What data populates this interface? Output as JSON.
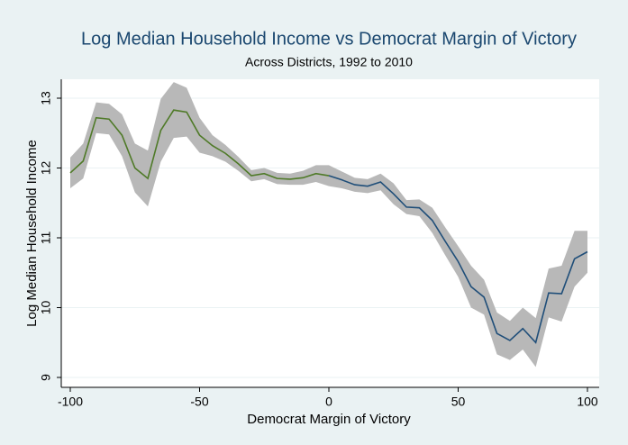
{
  "chart_data": {
    "type": "line",
    "title": "Log Median Household Income vs Democrat Margin of Victory",
    "subtitle": "Across Districts, 1992 to 2010",
    "x_label": "Democrat Margin of Victory",
    "y_label": "Log Median Household Income",
    "x": [
      -100,
      -95,
      -90,
      -85,
      -80,
      -75,
      -70,
      -65,
      -60,
      -55,
      -50,
      -45,
      -40,
      -35,
      -30,
      -25,
      -20,
      -15,
      -10,
      -5,
      0,
      5,
      10,
      15,
      20,
      25,
      30,
      35,
      40,
      45,
      50,
      55,
      60,
      65,
      70,
      75,
      80,
      85,
      90,
      95,
      100
    ],
    "series": [
      {
        "color": "#4f7a28",
        "values": [
          11.93,
          12.1,
          12.72,
          12.7,
          12.47,
          12.0,
          11.85,
          12.54,
          12.83,
          12.8,
          12.47,
          12.32,
          12.21,
          12.06,
          11.89,
          11.92,
          11.85,
          11.84,
          11.86,
          11.92,
          11.89,
          null,
          null,
          null,
          null,
          null,
          null,
          null,
          null,
          null,
          null,
          null,
          null,
          null,
          null,
          null,
          null,
          null,
          null,
          null,
          null
        ]
      },
      {
        "color": "#1f4e79",
        "values": [
          null,
          null,
          null,
          null,
          null,
          null,
          null,
          null,
          null,
          null,
          null,
          null,
          null,
          null,
          null,
          null,
          null,
          null,
          null,
          null,
          11.89,
          11.83,
          11.76,
          11.74,
          11.8,
          11.63,
          11.44,
          11.43,
          11.25,
          10.95,
          10.66,
          10.3,
          10.15,
          9.63,
          9.53,
          9.7,
          9.5,
          10.21,
          10.2,
          10.7,
          10.8
        ]
      }
    ],
    "band": {
      "color": "#b8b8b8",
      "lower": [
        11.71,
        11.85,
        12.5,
        12.48,
        12.17,
        11.65,
        11.45,
        12.09,
        12.43,
        12.45,
        12.22,
        12.17,
        12.09,
        11.96,
        11.81,
        11.84,
        11.77,
        11.76,
        11.76,
        11.8,
        11.74,
        11.71,
        11.66,
        11.64,
        11.68,
        11.48,
        11.34,
        11.31,
        11.07,
        10.75,
        10.44,
        10.0,
        9.9,
        9.33,
        9.25,
        9.4,
        9.15,
        9.86,
        9.8,
        10.3,
        10.5
      ],
      "upper": [
        12.15,
        12.35,
        12.94,
        12.92,
        12.77,
        12.35,
        12.25,
        12.99,
        13.23,
        13.15,
        12.72,
        12.47,
        12.33,
        12.16,
        11.97,
        12.0,
        11.93,
        11.92,
        11.96,
        12.04,
        12.04,
        11.95,
        11.86,
        11.84,
        11.92,
        11.78,
        11.54,
        11.55,
        11.43,
        11.15,
        10.88,
        10.6,
        10.4,
        9.93,
        9.81,
        10.0,
        9.85,
        10.56,
        10.6,
        11.1,
        11.1
      ]
    },
    "xlim": [
      -100,
      100
    ],
    "xticks": [
      -100,
      -50,
      0,
      50,
      100
    ],
    "ylim": [
      9,
      13
    ],
    "yticks": [
      9,
      10,
      11,
      12,
      13
    ],
    "grid": true
  }
}
